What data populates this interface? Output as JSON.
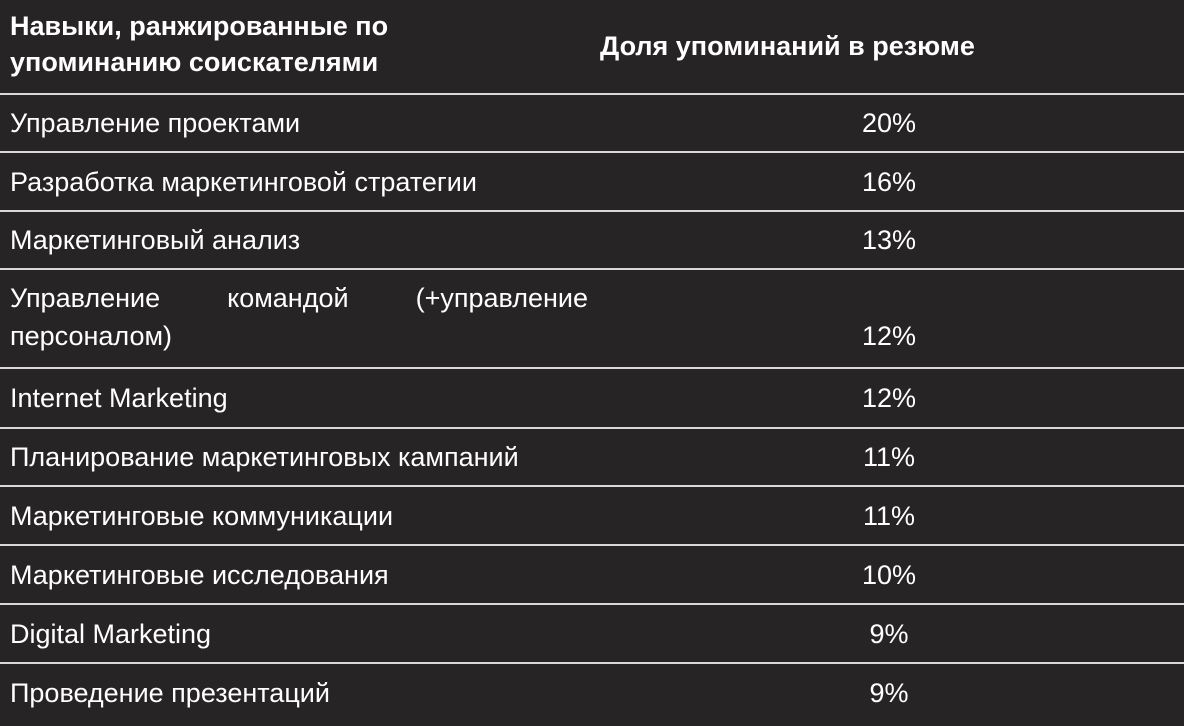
{
  "table": {
    "headers": {
      "skill": "Навыки, ранжированные по упоминанию соискателями",
      "share": "Доля упоминаний в резюме"
    },
    "rows": [
      {
        "skill": "Управление проектами",
        "share": "20%"
      },
      {
        "skill": "Разработка маркетинговой стратегии",
        "share": "16%"
      },
      {
        "skill": "Маркетинговый анализ",
        "share": "13%"
      },
      {
        "skill": "Управление командой (+управление персоналом)",
        "share": "12%"
      },
      {
        "skill": "Internet Marketing",
        "share": "12%"
      },
      {
        "skill": "Планирование маркетинговых кампаний",
        "share": "11%"
      },
      {
        "skill": "Маркетинговые коммуникации",
        "share": "11%"
      },
      {
        "skill": "Маркетинговые исследования",
        "share": "10%"
      },
      {
        "skill": "Digital Marketing",
        "share": "9%"
      },
      {
        "skill": "Проведение презентаций",
        "share": "9%"
      }
    ]
  },
  "colors": {
    "background": "#262424",
    "text": "#ffffff",
    "divider": "#d9d9d9"
  }
}
